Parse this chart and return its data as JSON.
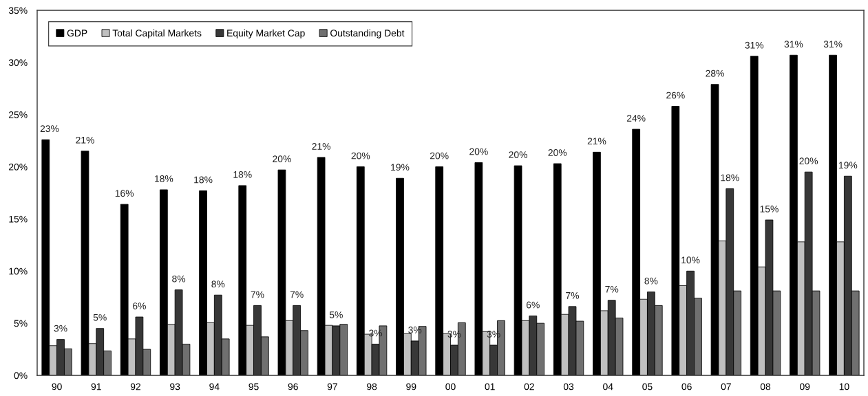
{
  "chart_data": {
    "type": "bar",
    "categories": [
      "90",
      "91",
      "92",
      "93",
      "94",
      "95",
      "96",
      "97",
      "98",
      "99",
      "00",
      "01",
      "02",
      "03",
      "04",
      "05",
      "06",
      "07",
      "08",
      "09",
      "10"
    ],
    "series": [
      {
        "name": "GDP",
        "color": "#000000",
        "values": [
          22.6,
          21.5,
          16.4,
          17.8,
          17.7,
          18.2,
          19.7,
          20.9,
          20.0,
          18.9,
          20.0,
          20.4,
          20.1,
          20.3,
          21.4,
          23.6,
          25.8,
          27.9,
          30.6,
          30.7,
          30.7
        ],
        "value_labels": [
          "23%",
          "21%",
          "16%",
          "18%",
          "18%",
          "18%",
          "20%",
          "21%",
          "20%",
          "19%",
          "20%",
          "20%",
          "20%",
          "20%",
          "21%",
          "24%",
          "26%",
          "28%",
          "31%",
          "31%",
          "31%"
        ]
      },
      {
        "name": "Total Capital Markets",
        "color": "#c0c0c0",
        "values": [
          2.85,
          3.05,
          3.5,
          4.9,
          5.05,
          4.8,
          5.25,
          4.8,
          3.95,
          4.0,
          4.0,
          4.2,
          5.25,
          5.85,
          6.2,
          7.3,
          8.6,
          12.9,
          10.4,
          12.8,
          12.8
        ]
      },
      {
        "name": "Equity Market Cap",
        "color": "#383838",
        "values": [
          3.45,
          4.5,
          5.6,
          8.2,
          7.7,
          6.7,
          6.7,
          4.75,
          3.0,
          3.3,
          2.9,
          2.9,
          5.7,
          6.6,
          7.2,
          8.0,
          10.0,
          17.9,
          14.9,
          19.5,
          19.1
        ],
        "value_labels": [
          "3%",
          "5%",
          "6%",
          "8%",
          "8%",
          "7%",
          "7%",
          "5%",
          "3%",
          "3%",
          "3%",
          "3%",
          "6%",
          "7%",
          "7%",
          "8%",
          "10%",
          "18%",
          "15%",
          "20%",
          "19%"
        ]
      },
      {
        "name": "Outstanding Debt",
        "color": "#707070",
        "values": [
          2.55,
          2.35,
          2.5,
          3.0,
          3.5,
          3.7,
          4.3,
          4.9,
          4.75,
          4.7,
          5.05,
          5.25,
          5.0,
          5.2,
          5.5,
          6.7,
          7.4,
          8.1,
          8.1,
          8.1,
          8.1
        ]
      }
    ],
    "ylim": [
      0,
      35
    ],
    "yticks": [
      {
        "value": 0,
        "label": "0%"
      },
      {
        "value": 5,
        "label": "5%"
      },
      {
        "value": 10,
        "label": "10%"
      },
      {
        "value": 15,
        "label": "15%"
      },
      {
        "value": 20,
        "label": "20%"
      },
      {
        "value": 25,
        "label": "25%"
      },
      {
        "value": 30,
        "label": "30%"
      },
      {
        "value": 35,
        "label": "35%"
      }
    ],
    "grid": false,
    "legend": "top left"
  }
}
